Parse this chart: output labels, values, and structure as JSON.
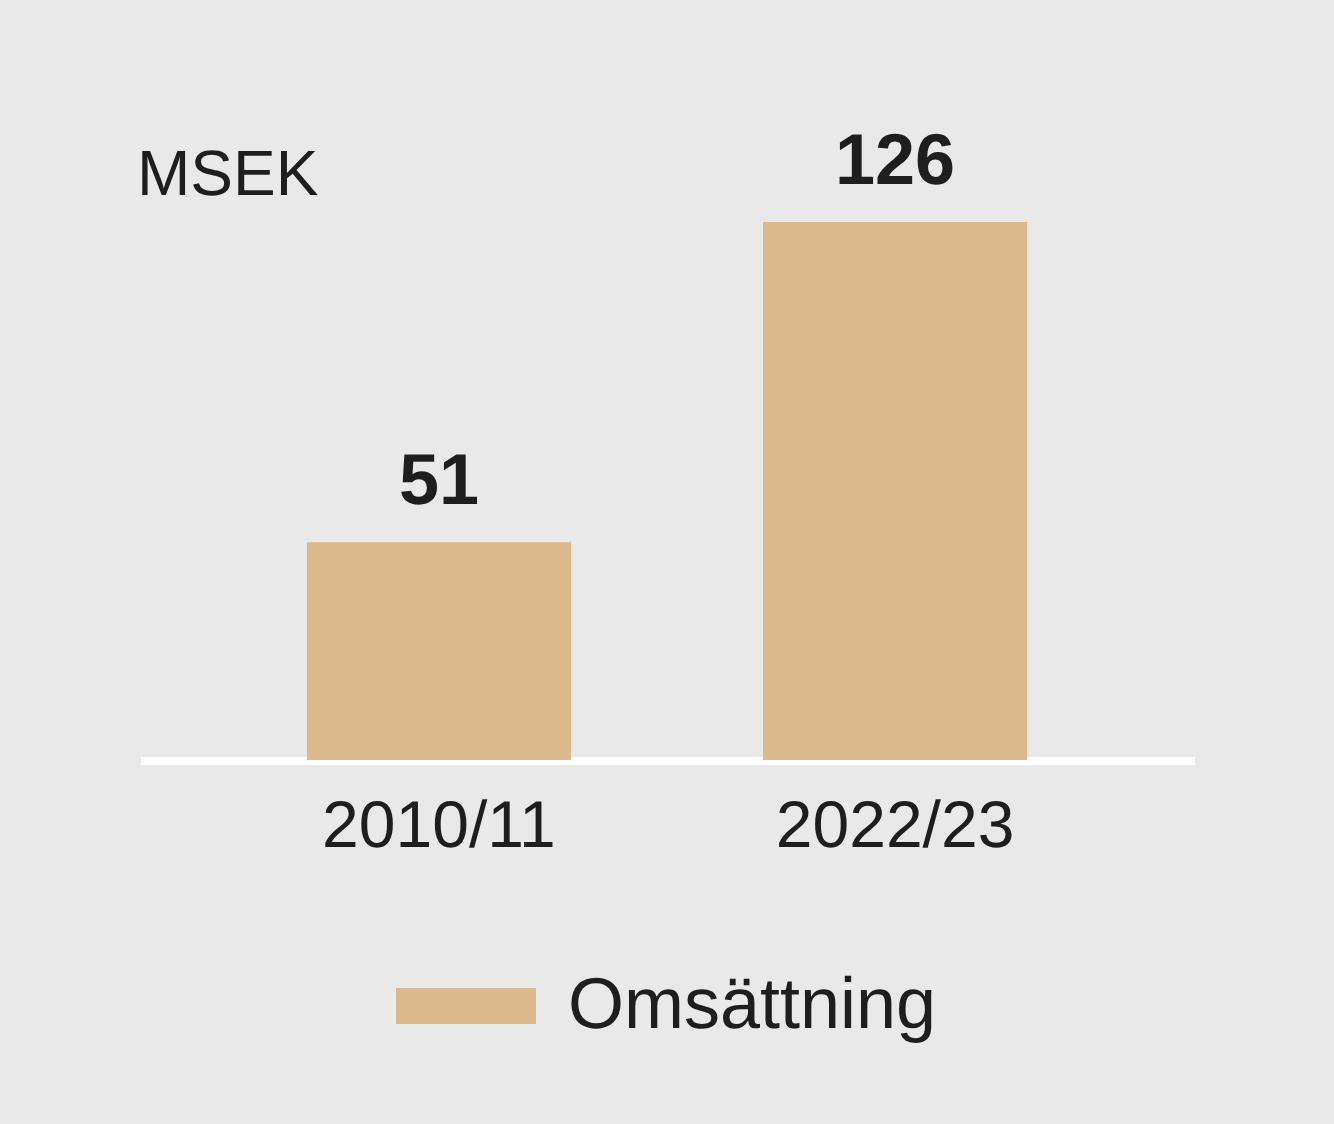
{
  "chart_data": {
    "type": "bar",
    "ylabel": "MSEK",
    "categories": [
      "2010/11",
      "2022/23"
    ],
    "series": [
      {
        "name": "Omsättning",
        "color": "#dbb98d",
        "values": [
          51,
          126
        ]
      }
    ],
    "data_labels": true,
    "legend": "bottom"
  }
}
